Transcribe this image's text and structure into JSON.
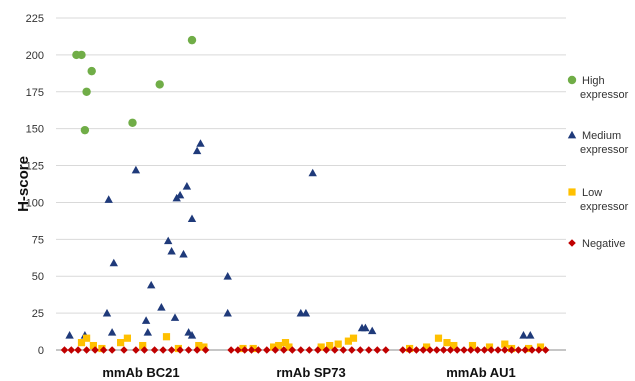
{
  "chart_data": {
    "type": "scatter",
    "title": "",
    "xlabel": "",
    "ylabel": "H-score",
    "categories": [
      "mmAb BC21",
      "rmAb SP73",
      "mmAb AU1"
    ],
    "ylim": [
      0,
      225
    ],
    "yticks": [
      0,
      25,
      50,
      75,
      100,
      125,
      150,
      175,
      200,
      225
    ],
    "grid": "horizontal",
    "legend_position": "right",
    "x_note": "x values are positions along the category axis: 0-1 = mmAb BC21, 1-2 = rmAb SP73, 2-3 = mmAb AU1",
    "series": [
      {
        "name": "High expressor",
        "legend_lines": [
          "High",
          "expressor"
        ],
        "color": "#70ad47",
        "marker": "circle",
        "points": [
          [
            0.12,
            200
          ],
          [
            0.15,
            200
          ],
          [
            0.17,
            149
          ],
          [
            0.18,
            175
          ],
          [
            0.21,
            189
          ],
          [
            0.45,
            154
          ],
          [
            0.61,
            180
          ],
          [
            0.8,
            210
          ]
        ]
      },
      {
        "name": "Medium expressor",
        "legend_lines": [
          "Medium",
          "expressor"
        ],
        "color": "#1f3a7a",
        "marker": "triangle",
        "points": [
          [
            0.08,
            10
          ],
          [
            0.17,
            10
          ],
          [
            0.3,
            25
          ],
          [
            0.31,
            102
          ],
          [
            0.33,
            12
          ],
          [
            0.34,
            59
          ],
          [
            0.47,
            122
          ],
          [
            0.53,
            20
          ],
          [
            0.54,
            12
          ],
          [
            0.56,
            44
          ],
          [
            0.62,
            29
          ],
          [
            0.66,
            74
          ],
          [
            0.68,
            67
          ],
          [
            0.7,
            22
          ],
          [
            0.71,
            103
          ],
          [
            0.73,
            105
          ],
          [
            0.75,
            65
          ],
          [
            0.77,
            111
          ],
          [
            0.78,
            12
          ],
          [
            0.8,
            89
          ],
          [
            0.8,
            10
          ],
          [
            0.83,
            135
          ],
          [
            0.85,
            140
          ],
          [
            1.01,
            50
          ],
          [
            1.01,
            25
          ],
          [
            1.44,
            25
          ],
          [
            1.47,
            25
          ],
          [
            1.51,
            120
          ],
          [
            1.8,
            15
          ],
          [
            1.82,
            15
          ],
          [
            1.86,
            13
          ],
          [
            2.75,
            10
          ],
          [
            2.79,
            10
          ]
        ]
      },
      {
        "name": "Low expressor",
        "legend_lines": [
          "Low",
          "expressor"
        ],
        "color": "#ffc000",
        "marker": "square",
        "points": [
          [
            0.15,
            5
          ],
          [
            0.18,
            8
          ],
          [
            0.22,
            3
          ],
          [
            0.27,
            1
          ],
          [
            0.38,
            5
          ],
          [
            0.42,
            8
          ],
          [
            0.51,
            3
          ],
          [
            0.65,
            9
          ],
          [
            0.72,
            1
          ],
          [
            0.84,
            3
          ],
          [
            0.87,
            2
          ],
          [
            1.1,
            1
          ],
          [
            1.16,
            1
          ],
          [
            1.28,
            2
          ],
          [
            1.31,
            3
          ],
          [
            1.35,
            5
          ],
          [
            1.37,
            2
          ],
          [
            1.56,
            2
          ],
          [
            1.61,
            3
          ],
          [
            1.66,
            4
          ],
          [
            1.72,
            6
          ],
          [
            1.75,
            8
          ],
          [
            2.08,
            1
          ],
          [
            2.18,
            2
          ],
          [
            2.25,
            8
          ],
          [
            2.3,
            5
          ],
          [
            2.34,
            3
          ],
          [
            2.45,
            3
          ],
          [
            2.55,
            2
          ],
          [
            2.64,
            4
          ],
          [
            2.68,
            1
          ],
          [
            2.78,
            1
          ],
          [
            2.85,
            2
          ]
        ]
      },
      {
        "name": "Negative",
        "legend_lines": [
          "Negative"
        ],
        "color": "#c00000",
        "marker": "diamond",
        "points": [
          [
            0.05,
            0
          ],
          [
            0.09,
            0
          ],
          [
            0.13,
            0
          ],
          [
            0.18,
            0
          ],
          [
            0.23,
            0
          ],
          [
            0.28,
            0
          ],
          [
            0.33,
            0
          ],
          [
            0.4,
            0
          ],
          [
            0.47,
            0
          ],
          [
            0.52,
            0
          ],
          [
            0.58,
            0
          ],
          [
            0.63,
            0
          ],
          [
            0.68,
            0
          ],
          [
            0.73,
            0
          ],
          [
            0.78,
            0
          ],
          [
            0.83,
            0
          ],
          [
            0.88,
            0
          ],
          [
            1.03,
            0
          ],
          [
            1.07,
            0
          ],
          [
            1.11,
            0
          ],
          [
            1.15,
            0
          ],
          [
            1.19,
            0
          ],
          [
            1.24,
            0
          ],
          [
            1.29,
            0
          ],
          [
            1.34,
            0
          ],
          [
            1.39,
            0
          ],
          [
            1.44,
            0
          ],
          [
            1.49,
            0
          ],
          [
            1.54,
            0
          ],
          [
            1.59,
            0
          ],
          [
            1.64,
            0
          ],
          [
            1.69,
            0
          ],
          [
            1.74,
            0
          ],
          [
            1.79,
            0
          ],
          [
            1.84,
            0
          ],
          [
            1.89,
            0
          ],
          [
            1.94,
            0
          ],
          [
            2.04,
            0
          ],
          [
            2.08,
            0
          ],
          [
            2.12,
            0
          ],
          [
            2.16,
            0
          ],
          [
            2.2,
            0
          ],
          [
            2.24,
            0
          ],
          [
            2.28,
            0
          ],
          [
            2.32,
            0
          ],
          [
            2.36,
            0
          ],
          [
            2.4,
            0
          ],
          [
            2.44,
            0
          ],
          [
            2.48,
            0
          ],
          [
            2.52,
            0
          ],
          [
            2.56,
            0
          ],
          [
            2.6,
            0
          ],
          [
            2.64,
            0
          ],
          [
            2.68,
            0
          ],
          [
            2.72,
            0
          ],
          [
            2.76,
            0
          ],
          [
            2.8,
            0
          ],
          [
            2.84,
            0
          ],
          [
            2.88,
            0
          ]
        ]
      }
    ]
  }
}
